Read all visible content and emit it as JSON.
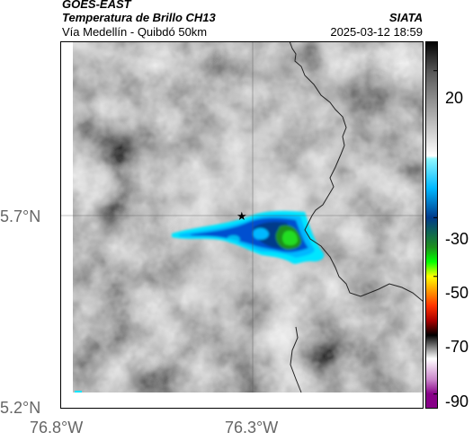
{
  "header": {
    "satellite": "GOES-EAST",
    "product": "Temperatura de Brillo CH13",
    "source": "SIATA",
    "region": "Vía Medellín - Quibdó 50km",
    "datetime": "2025-03-12 18:59"
  },
  "axes": {
    "lat_ticks": [
      "5.7°N",
      "5.2°N"
    ],
    "lon_ticks": [
      "76.8°W",
      "76.3°W"
    ]
  },
  "colorbar": {
    "ticks": [
      "20",
      "-30",
      "-50",
      "-70",
      "-90"
    ],
    "stops": [
      {
        "v": 30,
        "c": "#000000"
      },
      {
        "v": 20,
        "c": "#555555"
      },
      {
        "v": -9,
        "c": "#ffffff"
      },
      {
        "v": -10,
        "c": "#8ff7ff"
      },
      {
        "v": -20,
        "c": "#00b8ff"
      },
      {
        "v": -30,
        "c": "#003a8a"
      },
      {
        "v": -40,
        "c": "#1e8f1e"
      },
      {
        "v": -45,
        "c": "#00ff00"
      },
      {
        "v": -50,
        "c": "#ffff00"
      },
      {
        "v": -60,
        "c": "#ff3300"
      },
      {
        "v": -65,
        "c": "#aa0000"
      },
      {
        "v": -70,
        "c": "#000000"
      },
      {
        "v": -78,
        "c": "#ffffff"
      },
      {
        "v": -85,
        "c": "#cc88cc"
      },
      {
        "v": -90,
        "c": "#880088"
      }
    ]
  },
  "map": {
    "marker": "star-icon",
    "colors": {
      "cloud_edge": "#00e5ff",
      "cloud_mid": "#0050d0",
      "cloud_core": "#22cc22",
      "border": "#222222"
    }
  }
}
